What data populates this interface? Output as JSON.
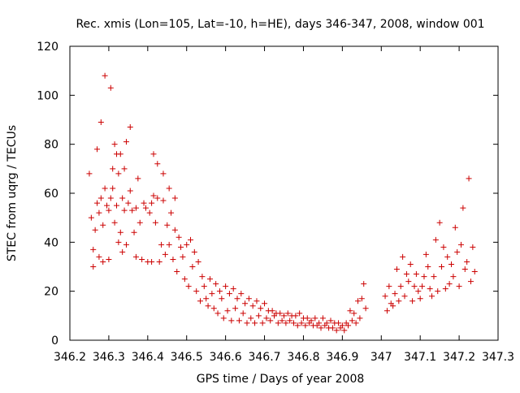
{
  "chart_data": {
    "type": "scatter",
    "title": "Rec. xmis (Lon=105, Lat=-10, h=HE), days 346-347, 2008, window 001",
    "xlabel": "GPS time / Days of year 2008",
    "ylabel": "STEC from uqrg / TECUs",
    "xlim": [
      346.2,
      347.3
    ],
    "ylim": [
      0,
      120
    ],
    "x_ticks": [
      346.2,
      346.3,
      346.4,
      346.5,
      346.6,
      346.7,
      346.8,
      346.9,
      347,
      347.1,
      347.2,
      347.3
    ],
    "x_tick_labels": [
      "346.2",
      "346.3",
      "346.4",
      "346.5",
      "346.6",
      "346.7",
      "346.8",
      "346.9",
      "347",
      "347.1",
      "347.2",
      "347.3"
    ],
    "y_ticks": [
      0,
      20,
      40,
      60,
      80,
      100,
      120
    ],
    "y_tick_labels": [
      "0",
      "20",
      "40",
      "60",
      "80",
      "100",
      "120"
    ],
    "grid": false,
    "marker": "plus",
    "color": "#cc0000",
    "points": [
      [
        346.25,
        68
      ],
      [
        346.255,
        50
      ],
      [
        346.26,
        37
      ],
      [
        346.26,
        30
      ],
      [
        346.265,
        45
      ],
      [
        346.27,
        78
      ],
      [
        346.27,
        56
      ],
      [
        346.275,
        34
      ],
      [
        346.275,
        52
      ],
      [
        346.28,
        89
      ],
      [
        346.28,
        58
      ],
      [
        346.285,
        47
      ],
      [
        346.285,
        32
      ],
      [
        346.29,
        108
      ],
      [
        346.29,
        62
      ],
      [
        346.295,
        55
      ],
      [
        346.3,
        53
      ],
      [
        346.3,
        33
      ],
      [
        346.305,
        103
      ],
      [
        346.305,
        58
      ],
      [
        346.31,
        70
      ],
      [
        346.31,
        62
      ],
      [
        346.315,
        80
      ],
      [
        346.315,
        48
      ],
      [
        346.32,
        76
      ],
      [
        346.32,
        55
      ],
      [
        346.325,
        68
      ],
      [
        346.325,
        40
      ],
      [
        346.33,
        76
      ],
      [
        346.33,
        44
      ],
      [
        346.335,
        58
      ],
      [
        346.335,
        36
      ],
      [
        346.34,
        70
      ],
      [
        346.34,
        53
      ],
      [
        346.345,
        81
      ],
      [
        346.345,
        39
      ],
      [
        346.35,
        56
      ],
      [
        346.355,
        87
      ],
      [
        346.355,
        61
      ],
      [
        346.36,
        53
      ],
      [
        346.365,
        44
      ],
      [
        346.37,
        54
      ],
      [
        346.37,
        34
      ],
      [
        346.375,
        66
      ],
      [
        346.38,
        48
      ],
      [
        346.385,
        33
      ],
      [
        346.39,
        56
      ],
      [
        346.395,
        54
      ],
      [
        346.4,
        32
      ],
      [
        346.405,
        52
      ],
      [
        346.41,
        56
      ],
      [
        346.41,
        32
      ],
      [
        346.415,
        76
      ],
      [
        346.415,
        59
      ],
      [
        346.42,
        48
      ],
      [
        346.425,
        72
      ],
      [
        346.425,
        58
      ],
      [
        346.43,
        32
      ],
      [
        346.435,
        39
      ],
      [
        346.44,
        68
      ],
      [
        346.44,
        57
      ],
      [
        346.445,
        35
      ],
      [
        346.45,
        47
      ],
      [
        346.455,
        62
      ],
      [
        346.455,
        39
      ],
      [
        346.46,
        52
      ],
      [
        346.465,
        33
      ],
      [
        346.47,
        58
      ],
      [
        346.47,
        45
      ],
      [
        346.475,
        28
      ],
      [
        346.48,
        42
      ],
      [
        346.485,
        38
      ],
      [
        346.49,
        34
      ],
      [
        346.495,
        25
      ],
      [
        346.5,
        39
      ],
      [
        346.505,
        22
      ],
      [
        346.51,
        41
      ],
      [
        346.515,
        30
      ],
      [
        346.52,
        36
      ],
      [
        346.525,
        20
      ],
      [
        346.53,
        32
      ],
      [
        346.535,
        16
      ],
      [
        346.54,
        26
      ],
      [
        346.545,
        22
      ],
      [
        346.55,
        17
      ],
      [
        346.555,
        14
      ],
      [
        346.56,
        25
      ],
      [
        346.565,
        19
      ],
      [
        346.57,
        13
      ],
      [
        346.575,
        23
      ],
      [
        346.58,
        11
      ],
      [
        346.585,
        20
      ],
      [
        346.59,
        17
      ],
      [
        346.595,
        9
      ],
      [
        346.6,
        22
      ],
      [
        346.605,
        12
      ],
      [
        346.61,
        19
      ],
      [
        346.615,
        8
      ],
      [
        346.62,
        21
      ],
      [
        346.625,
        13
      ],
      [
        346.63,
        17
      ],
      [
        346.635,
        8
      ],
      [
        346.64,
        19
      ],
      [
        346.645,
        11
      ],
      [
        346.65,
        15
      ],
      [
        346.655,
        7
      ],
      [
        346.66,
        17
      ],
      [
        346.665,
        9
      ],
      [
        346.67,
        14
      ],
      [
        346.675,
        7
      ],
      [
        346.68,
        16
      ],
      [
        346.685,
        10
      ],
      [
        346.69,
        13
      ],
      [
        346.695,
        7
      ],
      [
        346.7,
        15
      ],
      [
        346.705,
        9
      ],
      [
        346.71,
        12
      ],
      [
        346.715,
        8
      ],
      [
        346.72,
        12
      ],
      [
        346.725,
        10
      ],
      [
        346.73,
        11
      ],
      [
        346.735,
        7
      ],
      [
        346.74,
        11
      ],
      [
        346.745,
        8
      ],
      [
        346.75,
        10
      ],
      [
        346.755,
        7
      ],
      [
        346.76,
        11
      ],
      [
        346.765,
        8
      ],
      [
        346.77,
        10
      ],
      [
        346.775,
        7
      ],
      [
        346.78,
        10
      ],
      [
        346.785,
        6
      ],
      [
        346.79,
        11
      ],
      [
        346.795,
        7
      ],
      [
        346.8,
        9
      ],
      [
        346.805,
        6
      ],
      [
        346.81,
        9
      ],
      [
        346.815,
        7
      ],
      [
        346.82,
        8
      ],
      [
        346.825,
        6
      ],
      [
        346.83,
        9
      ],
      [
        346.835,
        6
      ],
      [
        346.84,
        7
      ],
      [
        346.845,
        5
      ],
      [
        346.85,
        9
      ],
      [
        346.855,
        6
      ],
      [
        346.86,
        7
      ],
      [
        346.865,
        5
      ],
      [
        346.87,
        8
      ],
      [
        346.875,
        5
      ],
      [
        346.88,
        7
      ],
      [
        346.885,
        4
      ],
      [
        346.89,
        7
      ],
      [
        346.895,
        5
      ],
      [
        346.9,
        6
      ],
      [
        346.905,
        4
      ],
      [
        346.91,
        7
      ],
      [
        346.915,
        6
      ],
      [
        346.92,
        12
      ],
      [
        346.925,
        8
      ],
      [
        346.93,
        11
      ],
      [
        346.935,
        7
      ],
      [
        346.94,
        16
      ],
      [
        346.945,
        9
      ],
      [
        346.95,
        17
      ],
      [
        346.955,
        23
      ],
      [
        346.96,
        13
      ],
      [
        347.01,
        18
      ],
      [
        347.015,
        12
      ],
      [
        347.02,
        22
      ],
      [
        347.025,
        15
      ],
      [
        347.03,
        14
      ],
      [
        347.035,
        19
      ],
      [
        347.04,
        29
      ],
      [
        347.045,
        16
      ],
      [
        347.05,
        22
      ],
      [
        347.055,
        34
      ],
      [
        347.06,
        18
      ],
      [
        347.065,
        27
      ],
      [
        347.07,
        24
      ],
      [
        347.075,
        31
      ],
      [
        347.08,
        16
      ],
      [
        347.085,
        22
      ],
      [
        347.09,
        27
      ],
      [
        347.095,
        20
      ],
      [
        347.1,
        17
      ],
      [
        347.105,
        22
      ],
      [
        347.11,
        26
      ],
      [
        347.115,
        35
      ],
      [
        347.12,
        30
      ],
      [
        347.125,
        21
      ],
      [
        347.13,
        18
      ],
      [
        347.135,
        26
      ],
      [
        347.14,
        41
      ],
      [
        347.145,
        20
      ],
      [
        347.15,
        48
      ],
      [
        347.155,
        30
      ],
      [
        347.16,
        38
      ],
      [
        347.165,
        21
      ],
      [
        347.17,
        34
      ],
      [
        347.175,
        23
      ],
      [
        347.18,
        31
      ],
      [
        347.185,
        26
      ],
      [
        347.19,
        46
      ],
      [
        347.195,
        36
      ],
      [
        347.2,
        22
      ],
      [
        347.205,
        39
      ],
      [
        347.21,
        54
      ],
      [
        347.215,
        29
      ],
      [
        347.22,
        32
      ],
      [
        347.225,
        66
      ],
      [
        347.23,
        24
      ],
      [
        347.235,
        38
      ],
      [
        347.24,
        28
      ]
    ]
  }
}
